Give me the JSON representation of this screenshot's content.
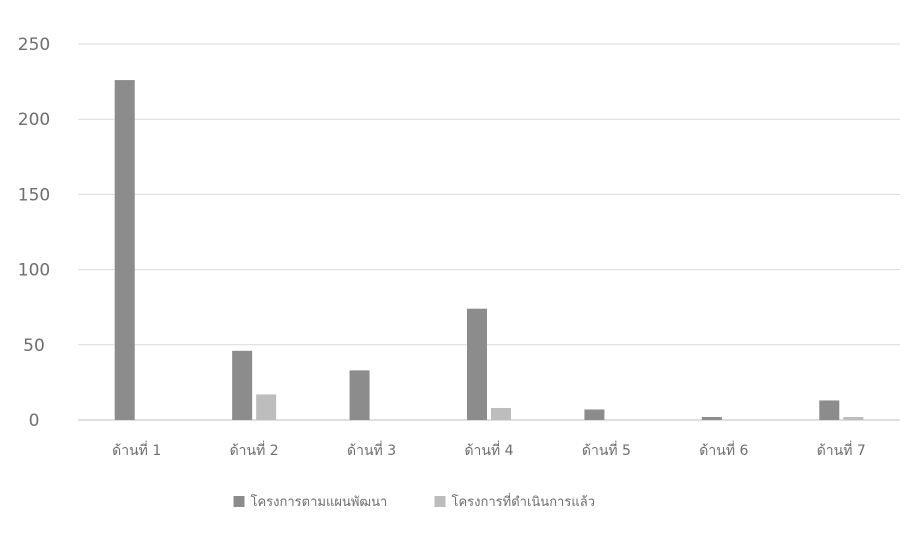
{
  "chart_data": {
    "type": "bar",
    "categories": [
      "ด้านที่ 1",
      "ด้านที่ 2",
      "ด้านที่ 3",
      "ด้านที่ 4",
      "ด้านที่ 5",
      "ด้านที่ 6",
      "ด้านที่ 7"
    ],
    "series": [
      {
        "name": "โครงการตามแผนพัฒนา",
        "values": [
          226,
          46,
          33,
          74,
          7,
          2,
          13
        ],
        "color": "#8c8c8c"
      },
      {
        "name": "โครงการที่ดำเนินการแล้ว",
        "values": [
          0,
          17,
          0,
          8,
          0,
          0,
          2
        ],
        "color": "#bdbdbd"
      }
    ],
    "ylim": [
      0,
      250
    ],
    "yticks": [
      0,
      50,
      100,
      150,
      200,
      250
    ],
    "grid": true,
    "legend_position": "bottom",
    "title": "",
    "xlabel": "",
    "ylabel": ""
  }
}
